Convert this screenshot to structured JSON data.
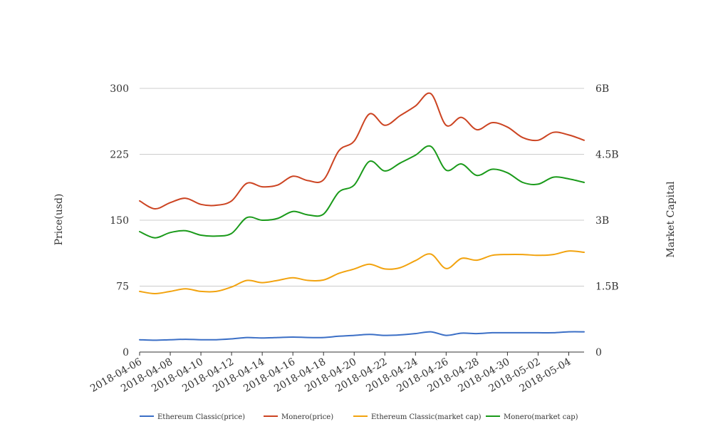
{
  "chart_data": {
    "type": "line",
    "title": "",
    "ylabel": "Price(usd)",
    "y2label": "Market Capital",
    "ylim": [
      0,
      300
    ],
    "y2lim": [
      0,
      6000000000
    ],
    "yticks": [
      "0",
      "75",
      "150",
      "225",
      "300"
    ],
    "y2ticks": [
      "0",
      "1.5B",
      "3B",
      "4.5B",
      "6B"
    ],
    "grid": true,
    "legend_position": "bottom",
    "x": [
      "2018-04-06",
      "2018-04-07",
      "2018-04-08",
      "2018-04-09",
      "2018-04-10",
      "2018-04-11",
      "2018-04-12",
      "2018-04-13",
      "2018-04-14",
      "2018-04-15",
      "2018-04-16",
      "2018-04-17",
      "2018-04-18",
      "2018-04-19",
      "2018-04-20",
      "2018-04-21",
      "2018-04-22",
      "2018-04-23",
      "2018-04-24",
      "2018-04-25",
      "2018-04-26",
      "2018-04-27",
      "2018-04-28",
      "2018-04-29",
      "2018-04-30",
      "2018-05-01",
      "2018-05-02",
      "2018-05-03",
      "2018-05-04",
      "2018-05-05"
    ],
    "xticks": [
      "2018-04-06",
      "2018-04-08",
      "2018-04-10",
      "2018-04-12",
      "2018-04-14",
      "2018-04-16",
      "2018-04-18",
      "2018-04-20",
      "2018-04-22",
      "2018-04-24",
      "2018-04-26",
      "2018-04-28",
      "2018-04-30",
      "2018-05-02",
      "2018-05-04"
    ],
    "series": [
      {
        "name": "Ethereum Classic(price)",
        "axis": "left",
        "color": "#3b6fc6",
        "values": [
          14,
          13.5,
          14,
          14.5,
          14,
          14,
          15,
          16.5,
          16,
          16.5,
          17,
          16.5,
          16.5,
          18,
          19,
          20,
          19,
          19.5,
          21,
          23,
          19,
          21.5,
          21,
          22,
          22,
          22,
          22,
          22,
          23,
          23
        ]
      },
      {
        "name": "Monero(price)",
        "axis": "left",
        "color": "#cc4422",
        "values": [
          172,
          163,
          170,
          175,
          168,
          167,
          172,
          192,
          188,
          190,
          200,
          195,
          196,
          229,
          240,
          271,
          258,
          269,
          280,
          294,
          258,
          267,
          253,
          261,
          256,
          244,
          241,
          250,
          247,
          241
        ]
      },
      {
        "name": "Ethereum Classic(market cap)",
        "axis": "right",
        "color": "#f2a30f",
        "values": [
          1380000000,
          1330000000,
          1380000000,
          1440000000,
          1380000000,
          1380000000,
          1480000000,
          1630000000,
          1580000000,
          1630000000,
          1690000000,
          1630000000,
          1640000000,
          1790000000,
          1890000000,
          2000000000,
          1890000000,
          1920000000,
          2080000000,
          2230000000,
          1900000000,
          2130000000,
          2090000000,
          2200000000,
          2220000000,
          2220000000,
          2200000000,
          2220000000,
          2300000000,
          2270000000
        ]
      },
      {
        "name": "Monero(market cap)",
        "axis": "right",
        "color": "#1a9a1a",
        "values": [
          2740000000,
          2600000000,
          2720000000,
          2760000000,
          2660000000,
          2640000000,
          2700000000,
          3060000000,
          3000000000,
          3040000000,
          3200000000,
          3120000000,
          3140000000,
          3640000000,
          3800000000,
          4340000000,
          4120000000,
          4300000000,
          4480000000,
          4680000000,
          4140000000,
          4280000000,
          4020000000,
          4160000000,
          4080000000,
          3860000000,
          3820000000,
          3980000000,
          3940000000,
          3860000000
        ]
      }
    ]
  }
}
